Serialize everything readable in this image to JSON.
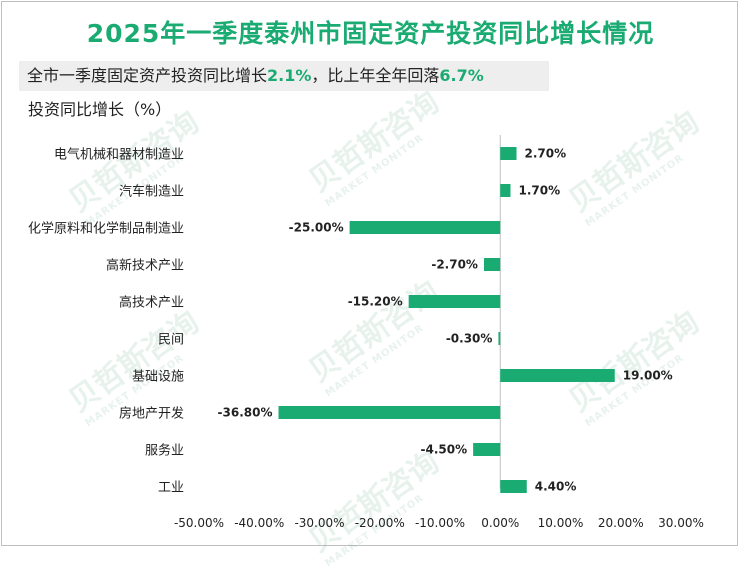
{
  "title": "2025年一季度泰州市固定资产投资同比增长情况",
  "summary": {
    "prefix": "全市一季度固定资产投资同比增长",
    "growth": "2.1%",
    "middle": "，比上年全年回落",
    "drop": "6.7%"
  },
  "watermark": {
    "text": "贝哲斯咨询",
    "subtext": "MARKET MONITOR"
  },
  "colors": {
    "bar": "#1aab72",
    "title": "#1aab72"
  },
  "chart_data": {
    "type": "bar",
    "orientation": "horizontal",
    "ylabel": "投资同比增长（%）",
    "categories": [
      "电气机械和器材制造业",
      "汽车制造业",
      "化学原料和化学制品制造业",
      "高新技术产业",
      "高技术产业",
      "民间",
      "基础设施",
      "房地产开发",
      "服务业",
      "工业"
    ],
    "values": [
      2.7,
      1.7,
      -25.0,
      -2.7,
      -15.2,
      -0.3,
      19.0,
      -36.8,
      -4.5,
      4.4
    ],
    "value_labels": [
      "2.70%",
      "1.70%",
      "-25.00%",
      "-2.70%",
      "-15.20%",
      "-0.30%",
      "19.00%",
      "-36.80%",
      "-4.50%",
      "4.40%"
    ],
    "xlim": [
      -50,
      30
    ],
    "xticks": [
      -50,
      -40,
      -30,
      -20,
      -10,
      0,
      10,
      20,
      30
    ],
    "xtick_labels": [
      "-50.00%",
      "-40.00%",
      "-30.00%",
      "-20.00%",
      "-10.00%",
      "0.00%",
      "10.00%",
      "20.00%",
      "30.00%"
    ],
    "grid": false,
    "legend": "none"
  }
}
